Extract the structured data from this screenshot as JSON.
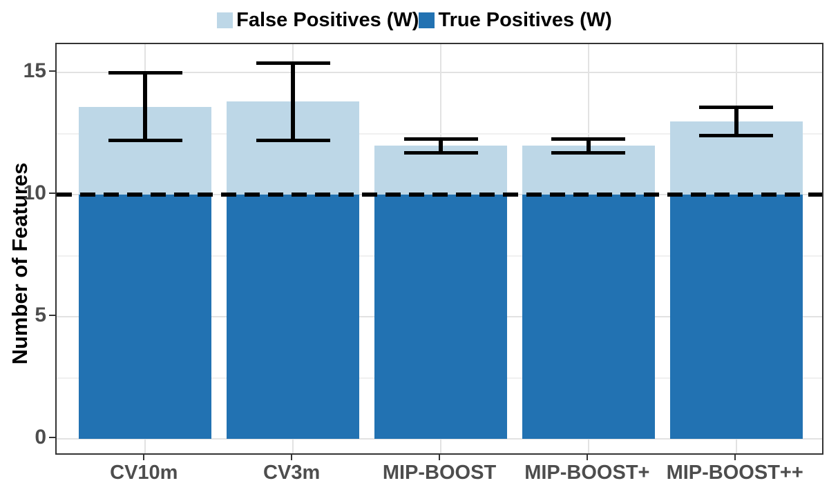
{
  "chart_data": {
    "type": "bar",
    "stacked": true,
    "title": "",
    "xlabel": "",
    "ylabel": "Number of Features",
    "categories": [
      "CV10m",
      "CV3m",
      "MIP-BOOST",
      "MIP-BOOST+",
      "MIP-BOOST++"
    ],
    "series": [
      {
        "name": "True Positives (W)",
        "color": "#2272b2",
        "values": [
          10,
          10,
          10,
          10,
          10
        ]
      },
      {
        "name": "False Positives (W)",
        "color": "#bdd7e7",
        "values": [
          3.6,
          3.8,
          2.0,
          2.0,
          3.0
        ]
      }
    ],
    "bar_totals": [
      13.6,
      13.8,
      12.0,
      12.0,
      13.0
    ],
    "error_bars": [
      {
        "category": "CV10m",
        "min": 12.2,
        "max": 15.0
      },
      {
        "category": "CV3m",
        "min": 12.2,
        "max": 15.4
      },
      {
        "category": "MIP-BOOST",
        "min": 11.7,
        "max": 12.3
      },
      {
        "category": "MIP-BOOST+",
        "min": 11.7,
        "max": 12.3
      },
      {
        "category": "MIP-BOOST++",
        "min": 12.4,
        "max": 13.6
      }
    ],
    "reference_line": {
      "y": 10,
      "style": "dashed",
      "color": "#000000"
    },
    "yticks": [
      "0",
      "5",
      "10",
      "15"
    ],
    "ytick_values": [
      0,
      5,
      10,
      15
    ],
    "yticks_minor": [
      2.5,
      7.5,
      12.5
    ],
    "ylim": [
      -0.7,
      16.16
    ],
    "grid": true,
    "legend": {
      "position": "top",
      "entries": [
        {
          "label": "False Positives (W)",
          "color": "#bdd7e7"
        },
        {
          "label": "True Positives (W)",
          "color": "#2272b2"
        }
      ]
    },
    "error_bar_color": "#000000",
    "axis_text_color": "#4d4d4d",
    "panel_border_color": "#333333"
  }
}
